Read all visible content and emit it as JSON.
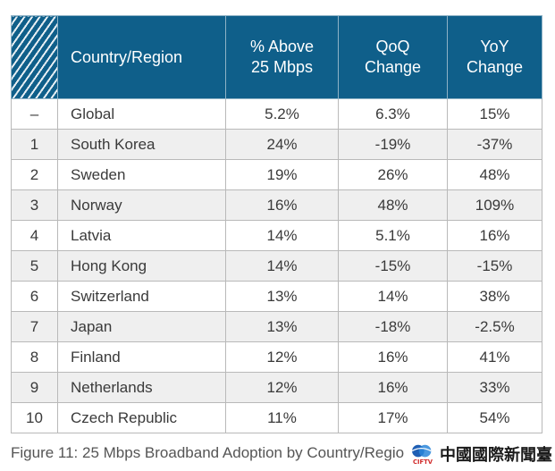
{
  "table": {
    "headers": {
      "rank": "",
      "country": "Country/Region",
      "pct_line1": "% Above",
      "pct_line2": "25 Mbps",
      "qoq_line1": "QoQ",
      "qoq_line2": "Change",
      "yoy_line1": "YoY",
      "yoy_line2": "Change"
    },
    "rows": [
      {
        "rank": "–",
        "country": "Global",
        "pct": "5.2%",
        "qoq": "6.3%",
        "yoy": "15%"
      },
      {
        "rank": "1",
        "country": "South Korea",
        "pct": "24%",
        "qoq": "-19%",
        "yoy": "-37%"
      },
      {
        "rank": "2",
        "country": "Sweden",
        "pct": "19%",
        "qoq": "26%",
        "yoy": "48%"
      },
      {
        "rank": "3",
        "country": "Norway",
        "pct": "16%",
        "qoq": "48%",
        "yoy": "109%"
      },
      {
        "rank": "4",
        "country": "Latvia",
        "pct": "14%",
        "qoq": "5.1%",
        "yoy": "16%"
      },
      {
        "rank": "5",
        "country": "Hong Kong",
        "pct": "14%",
        "qoq": "-15%",
        "yoy": "-15%"
      },
      {
        "rank": "6",
        "country": "Switzerland",
        "pct": "13%",
        "qoq": "14%",
        "yoy": "38%"
      },
      {
        "rank": "7",
        "country": "Japan",
        "pct": "13%",
        "qoq": "-18%",
        "yoy": "-2.5%"
      },
      {
        "rank": "8",
        "country": "Finland",
        "pct": "12%",
        "qoq": "16%",
        "yoy": "41%"
      },
      {
        "rank": "9",
        "country": "Netherlands",
        "pct": "12%",
        "qoq": "16%",
        "yoy": "33%"
      },
      {
        "rank": "10",
        "country": "Czech Republic",
        "pct": "11%",
        "qoq": "17%",
        "yoy": "54%"
      }
    ]
  },
  "caption": "Figure 11: 25 Mbps Broadband Adoption by Country/Regio",
  "watermark": {
    "text": "中國國際新聞臺",
    "logo_text": "CIFTV"
  },
  "colors": {
    "header_bg": "#0f5f8a",
    "row_alt_bg": "#efefef"
  }
}
